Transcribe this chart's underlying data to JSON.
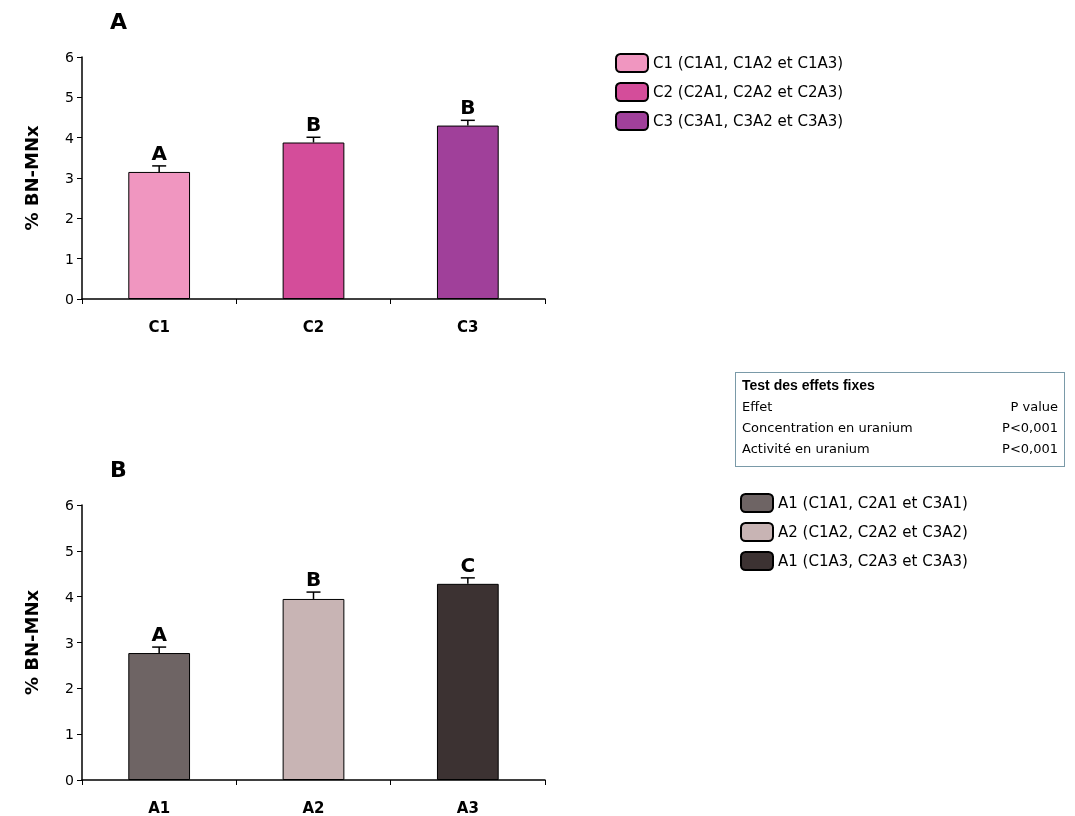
{
  "chart_data": [
    {
      "type": "bar",
      "title": "A",
      "ylabel": "% BN-MNx",
      "categories": [
        "C1",
        "C2",
        "C3"
      ],
      "ylim": [
        0,
        6
      ],
      "yticks": [
        0,
        1,
        2,
        3,
        4,
        5,
        6
      ],
      "grid": false,
      "legend": "top right",
      "series": [
        {
          "name": "C1 (C1A1, C1A2 et C1A3)",
          "color": "#f096c0",
          "values": [
            3.15,
            null,
            null
          ],
          "errors": [
            0.15,
            null,
            null
          ]
        },
        {
          "name": "C2 (C2A1, C2A2 et C2A3)",
          "color": "#d44d9a",
          "values": [
            null,
            3.88,
            null
          ],
          "errors": [
            null,
            0.13,
            null
          ]
        },
        {
          "name": "C3 (C3A1, C3A2 et C3A3)",
          "color": "#a0409a",
          "values": [
            null,
            null,
            4.3
          ],
          "errors": [
            null,
            null,
            0.13
          ]
        }
      ],
      "annotations": [
        {
          "text": "A",
          "x": "C1",
          "y": 3.3
        },
        {
          "text": "B",
          "x": "C2",
          "y": 4.01
        },
        {
          "text": "B",
          "x": "C3",
          "y": 4.43
        }
      ]
    },
    {
      "type": "bar",
      "title": "B",
      "ylabel": "% BN-MNx",
      "categories": [
        "A1",
        "A2",
        "A3"
      ],
      "ylim": [
        0,
        6
      ],
      "yticks": [
        0,
        1,
        2,
        3,
        4,
        5,
        6
      ],
      "grid": false,
      "legend": "right",
      "series": [
        {
          "name": "A1 (C1A1, C2A1 et C3A1)",
          "color": "#6e6464",
          "values": [
            2.77,
            null,
            null
          ],
          "errors": [
            0.13,
            null,
            null
          ]
        },
        {
          "name": "A2 (C1A2, C2A2 et C3A2)",
          "color": "#c8b4b4",
          "values": [
            null,
            3.95,
            null
          ],
          "errors": [
            null,
            0.15,
            null
          ]
        },
        {
          "name": "A1 (C1A3, C2A3 et C3A3)",
          "color": "#3c3232",
          "values": [
            null,
            null,
            4.28
          ],
          "errors": [
            null,
            null,
            0.13
          ]
        }
      ],
      "annotations": [
        {
          "text": "A",
          "x": "A1",
          "y": 2.9
        },
        {
          "text": "B",
          "x": "A2",
          "y": 4.1
        },
        {
          "text": "C",
          "x": "A3",
          "y": 4.41
        }
      ]
    },
    {
      "type": "other",
      "title": "Test des effets fixes",
      "annotations": [
        "Effet",
        "P value",
        "Concentration en uranium",
        "P<0,001",
        "Activité en uranium",
        "P<0,001"
      ]
    }
  ]
}
